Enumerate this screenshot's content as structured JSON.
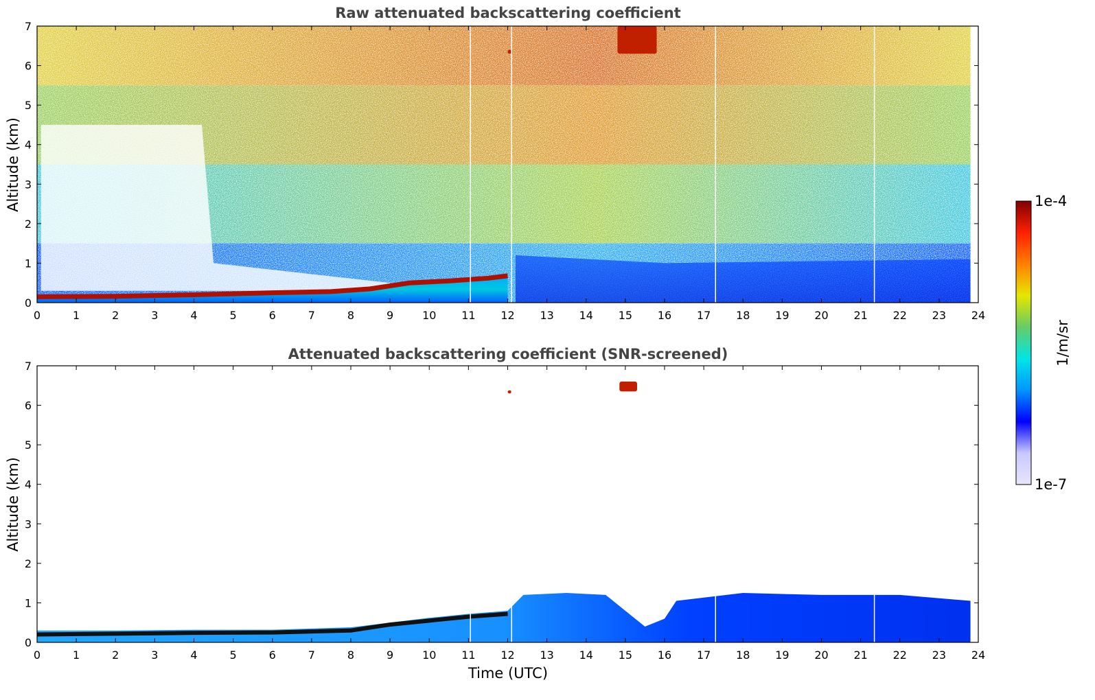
{
  "chart_data": [
    {
      "type": "heatmap",
      "title": "Raw attenuated backscattering coefficient",
      "xlabel": "",
      "ylabel": "Altitude (km)",
      "xlim": [
        0,
        24
      ],
      "ylim": [
        0,
        7
      ],
      "xticks": [
        "0",
        "1",
        "2",
        "3",
        "4",
        "5",
        "6",
        "7",
        "8",
        "9",
        "10",
        "11",
        "12",
        "13",
        "14",
        "15",
        "16",
        "17",
        "18",
        "19",
        "20",
        "21",
        "22",
        "23",
        "24"
      ],
      "yticks": [
        "0",
        "1",
        "2",
        "3",
        "4",
        "5",
        "6",
        "7"
      ],
      "data_end_hour": 23.8,
      "gaps_hours": [
        11.05,
        12.1,
        17.3,
        21.35
      ],
      "boundary_layer_top_km": {
        "x": [
          0,
          2,
          4,
          6,
          7.5,
          8.5,
          9.5,
          10.5,
          11.5,
          12.0
        ],
        "y": [
          0.15,
          0.16,
          0.2,
          0.25,
          0.28,
          0.35,
          0.5,
          0.55,
          0.62,
          0.68
        ]
      },
      "features": [
        {
          "label": "cloud",
          "x": [
            14.8,
            15.8
          ],
          "y": [
            6.3,
            7.0
          ]
        },
        {
          "label": "cloud",
          "x": [
            12.0,
            12.1
          ],
          "y": [
            6.3,
            6.4
          ]
        }
      ]
    },
    {
      "type": "heatmap",
      "title": "Attenuated backscattering coefficient (SNR-screened)",
      "xlabel": "Time (UTC)",
      "ylabel": "Altitude (km)",
      "xlim": [
        0,
        24
      ],
      "ylim": [
        0,
        7
      ],
      "xticks": [
        "0",
        "1",
        "2",
        "3",
        "4",
        "5",
        "6",
        "7",
        "8",
        "9",
        "10",
        "11",
        "12",
        "13",
        "14",
        "15",
        "16",
        "17",
        "18",
        "19",
        "20",
        "21",
        "22",
        "23",
        "24"
      ],
      "yticks": [
        "0",
        "1",
        "2",
        "3",
        "4",
        "5",
        "6",
        "7"
      ],
      "data_end_hour": 23.8,
      "gaps_hours": [
        11.05,
        12.1,
        17.3,
        21.35
      ],
      "screened_top_km": {
        "x": [
          0,
          2,
          4,
          6,
          8,
          9,
          10,
          11,
          12,
          12.4,
          13.5,
          14.5,
          15,
          15.5,
          16,
          16.3,
          18,
          20,
          22,
          23.8
        ],
        "y": [
          0.3,
          0.3,
          0.32,
          0.32,
          0.38,
          0.5,
          0.62,
          0.72,
          0.8,
          1.2,
          1.25,
          1.2,
          0.8,
          0.4,
          0.6,
          1.05,
          1.25,
          1.2,
          1.2,
          1.05
        ]
      },
      "features": [
        {
          "label": "cloud",
          "x": [
            14.85,
            15.3
          ],
          "y": [
            6.35,
            6.6
          ]
        },
        {
          "label": "cloud",
          "x": [
            12.0,
            12.1
          ],
          "y": [
            6.3,
            6.38
          ]
        }
      ]
    }
  ],
  "colorbar": {
    "label": "1/m/sr",
    "max_label": "1e-4",
    "min_label": "1e-7",
    "scale": "log",
    "colormap": [
      "#e6e6fa",
      "#c8c8ff",
      "#0000ff",
      "#0096ff",
      "#00e6e6",
      "#66cc66",
      "#e6e600",
      "#ff8000",
      "#ff2000",
      "#800000"
    ]
  }
}
